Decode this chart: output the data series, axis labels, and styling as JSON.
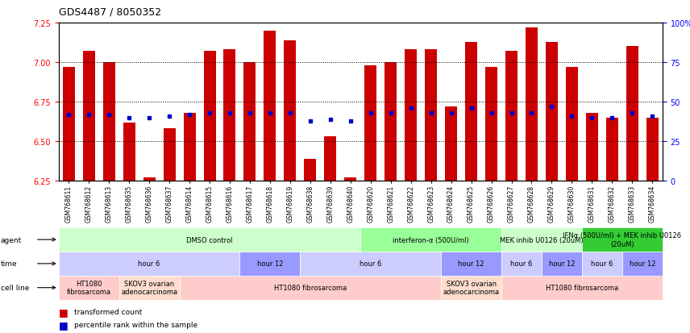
{
  "title": "GDS4487 / 8050352",
  "samples": [
    "GSM768611",
    "GSM768612",
    "GSM768613",
    "GSM768635",
    "GSM768636",
    "GSM768637",
    "GSM768614",
    "GSM768615",
    "GSM768616",
    "GSM768617",
    "GSM768618",
    "GSM768619",
    "GSM768638",
    "GSM768639",
    "GSM768640",
    "GSM768620",
    "GSM768621",
    "GSM768622",
    "GSM768623",
    "GSM768624",
    "GSM768625",
    "GSM768626",
    "GSM768627",
    "GSM768628",
    "GSM768629",
    "GSM768630",
    "GSM768631",
    "GSM768632",
    "GSM768633",
    "GSM768634"
  ],
  "transformed_count": [
    6.97,
    7.07,
    7.0,
    6.62,
    6.27,
    6.58,
    6.68,
    7.07,
    7.08,
    7.0,
    7.2,
    7.14,
    6.39,
    6.53,
    6.27,
    6.98,
    7.0,
    7.08,
    7.08,
    6.72,
    7.13,
    6.97,
    7.07,
    7.22,
    7.13,
    6.97,
    6.68,
    6.65,
    7.1,
    6.65
  ],
  "percentile_rank": [
    42,
    42,
    42,
    40,
    40,
    41,
    42,
    43,
    43,
    43,
    43,
    43,
    38,
    39,
    38,
    43,
    43,
    46,
    43,
    43,
    46,
    43,
    43,
    43,
    47,
    41,
    40,
    40,
    43,
    41
  ],
  "ylim_left": [
    6.25,
    7.25
  ],
  "ylim_right": [
    0,
    100
  ],
  "bar_color": "#cc0000",
  "dot_color": "#0000cc",
  "bar_width": 0.6,
  "agent_groups": [
    {
      "label": "DMSO control",
      "start": 0,
      "end": 15,
      "color": "#ccffcc"
    },
    {
      "label": "interferon-α (500U/ml)",
      "start": 15,
      "end": 22,
      "color": "#99ff99"
    },
    {
      "label": "MEK inhib U0126 (20uM)",
      "start": 22,
      "end": 26,
      "color": "#ccffcc"
    },
    {
      "label": "IFNα (500U/ml) + MEK inhib U0126\n(20uM)",
      "start": 26,
      "end": 30,
      "color": "#33cc33"
    }
  ],
  "time_groups": [
    {
      "label": "hour 6",
      "start": 0,
      "end": 9,
      "color": "#ccccff"
    },
    {
      "label": "hour 12",
      "start": 9,
      "end": 12,
      "color": "#9999ff"
    },
    {
      "label": "hour 6",
      "start": 12,
      "end": 19,
      "color": "#ccccff"
    },
    {
      "label": "hour 12",
      "start": 19,
      "end": 22,
      "color": "#9999ff"
    },
    {
      "label": "hour 6",
      "start": 22,
      "end": 24,
      "color": "#ccccff"
    },
    {
      "label": "hour 12",
      "start": 24,
      "end": 26,
      "color": "#9999ff"
    },
    {
      "label": "hour 6",
      "start": 26,
      "end": 28,
      "color": "#ccccff"
    },
    {
      "label": "hour 12",
      "start": 28,
      "end": 30,
      "color": "#9999ff"
    }
  ],
  "cellline_groups": [
    {
      "label": "HT1080\nfibrosarcoma",
      "start": 0,
      "end": 3,
      "color": "#ffcccc"
    },
    {
      "label": "SKOV3 ovarian\nadenocarcinoma",
      "start": 3,
      "end": 6,
      "color": "#ffddcc"
    },
    {
      "label": "HT1080 fibrosarcoma",
      "start": 6,
      "end": 19,
      "color": "#ffcccc"
    },
    {
      "label": "SKOV3 ovarian\nadenocarcinoma",
      "start": 19,
      "end": 22,
      "color": "#ffddcc"
    },
    {
      "label": "HT1080 fibrosarcoma",
      "start": 22,
      "end": 30,
      "color": "#ffcccc"
    }
  ],
  "row_labels": [
    "agent",
    "time",
    "cell line"
  ],
  "legend": [
    {
      "color": "#cc0000",
      "label": "transformed count"
    },
    {
      "color": "#0000cc",
      "label": "percentile rank within the sample"
    }
  ]
}
